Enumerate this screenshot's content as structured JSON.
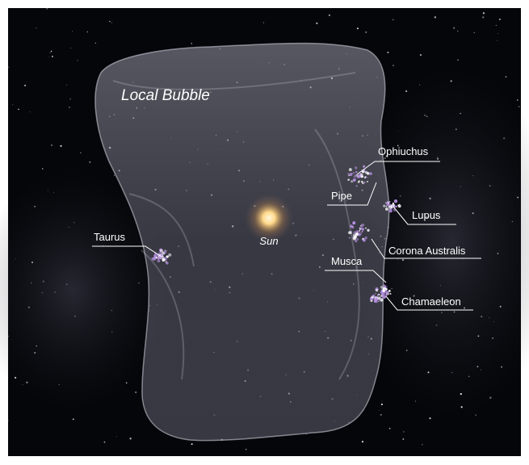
{
  "title": "Local Bubble",
  "center": "Sun",
  "regions": [
    "Ophiuchus",
    "Pipe",
    "Lupus",
    "Taurus",
    "Corona Australis",
    "Musca",
    "Chamaeleon"
  ]
}
